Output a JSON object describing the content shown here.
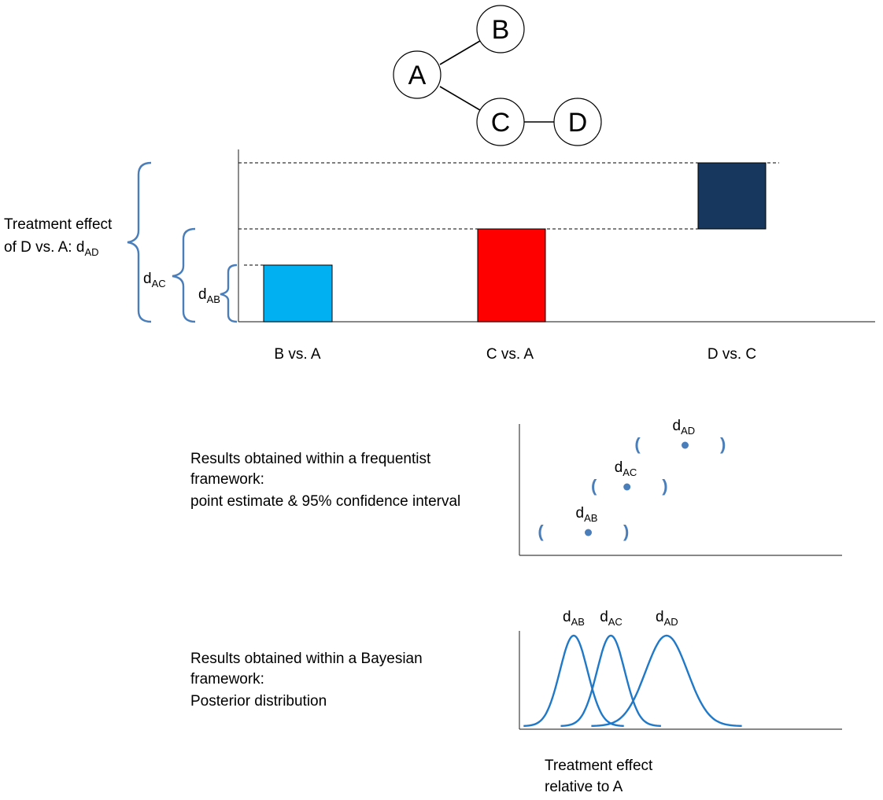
{
  "network": {
    "nodes": [
      "A",
      "B",
      "C",
      "D"
    ],
    "edges": [
      [
        "A",
        "B"
      ],
      [
        "A",
        "C"
      ],
      [
        "C",
        "D"
      ]
    ]
  },
  "bar_chart": {
    "type": "bar",
    "categories": [
      "B vs. A",
      "C vs. A",
      "D vs. C"
    ],
    "segments": [
      {
        "label": "B vs. A",
        "from": 0,
        "to": 1.0,
        "color": "#00b0f0"
      },
      {
        "label": "C vs. A",
        "from": 0,
        "to": 1.65,
        "color": "#ff0000"
      },
      {
        "label": "D vs. C",
        "from": 1.65,
        "to": 2.8,
        "color": "#17375e"
      }
    ]
  },
  "brackets": {
    "ad": {
      "main": "Treatment effect",
      "line2": "of D vs. A:  d",
      "sub": "AD"
    },
    "ac": {
      "main": "d",
      "sub": "AC"
    },
    "ab": {
      "main": "d",
      "sub": "AB"
    }
  },
  "frequentist": {
    "caption": [
      "Results obtained within a frequentist",
      "framework:",
      "point estimate & 95% confidence interval"
    ],
    "estimates": [
      {
        "label": "d",
        "sub": "AB",
        "point": 1.0,
        "lo": 0.0,
        "hi": 1.8
      },
      {
        "label": "d",
        "sub": "AC",
        "point": 1.8,
        "lo": 1.1,
        "hi": 2.6
      },
      {
        "label": "d",
        "sub": "AD",
        "point": 3.0,
        "lo": 2.0,
        "hi": 3.8
      }
    ]
  },
  "bayesian": {
    "caption": [
      "Results obtained within a Bayesian",
      "framework:",
      "Posterior distribution"
    ],
    "curves": [
      {
        "label": "d",
        "sub": "AB",
        "mean": 1.0,
        "sd": 0.3
      },
      {
        "label": "d",
        "sub": "AC",
        "mean": 1.8,
        "sd": 0.3
      },
      {
        "label": "d",
        "sub": "AD",
        "mean": 3.0,
        "sd": 0.45
      }
    ]
  },
  "axis_caption": [
    "Treatment effect",
    "relative to A"
  ],
  "colors": {
    "accent": "#4a7ebb",
    "curve": "#1f78c8",
    "edge": "#000000"
  }
}
